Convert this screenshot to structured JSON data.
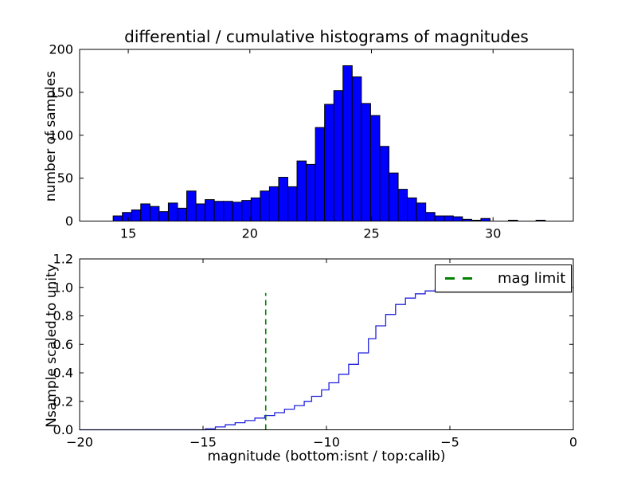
{
  "figure": {
    "background": "#ffffff",
    "frame_color": "#000000",
    "text_color": "#000000"
  },
  "chart_data": [
    {
      "id": "top-histogram",
      "type": "bar",
      "title": "differential / cumulative histograms of magnitudes",
      "xlabel": "",
      "ylabel": "number of samples",
      "bin_start": 14.38,
      "bin_width": 0.378,
      "counts": [
        6,
        10,
        13,
        20,
        17,
        11,
        21,
        15,
        35,
        20,
        25,
        23,
        23,
        22,
        24,
        27,
        35,
        40,
        51,
        40,
        70,
        66,
        109,
        136,
        152,
        181,
        168,
        137,
        123,
        87,
        56,
        37,
        27,
        21,
        10,
        6,
        6,
        5,
        2,
        1,
        3,
        0,
        0,
        1,
        0,
        0,
        1,
        0,
        0,
        0
      ],
      "xlim": [
        13.0,
        33.3
      ],
      "ylim": [
        0,
        200
      ],
      "xticks": [
        15,
        20,
        25,
        30
      ],
      "xticklabels": [
        "15",
        "20",
        "25",
        "30"
      ],
      "yticks": [
        0,
        50,
        100,
        150,
        200
      ],
      "yticklabels": [
        "0",
        "50",
        "100",
        "150",
        "200"
      ],
      "grid": false,
      "bar_color": "#0000ff",
      "bar_edge_color": "#000000"
    },
    {
      "id": "bottom-cumulative",
      "type": "line",
      "style": "step",
      "title": "",
      "xlabel": "magnitude (bottom:isnt / top:calib)",
      "ylabel": "Nsample scaled to unity",
      "points": [
        [
          -20,
          0
        ],
        [
          -15.2,
          0
        ],
        [
          -14.9,
          0.008
        ],
        [
          -14.5,
          0.02
        ],
        [
          -14.1,
          0.035
        ],
        [
          -13.7,
          0.05
        ],
        [
          -13.3,
          0.065
        ],
        [
          -12.9,
          0.082
        ],
        [
          -12.5,
          0.1
        ],
        [
          -12.1,
          0.12
        ],
        [
          -11.7,
          0.145
        ],
        [
          -11.3,
          0.17
        ],
        [
          -10.9,
          0.2
        ],
        [
          -10.6,
          0.235
        ],
        [
          -10.2,
          0.28
        ],
        [
          -9.9,
          0.33
        ],
        [
          -9.5,
          0.39
        ],
        [
          -9.1,
          0.46
        ],
        [
          -8.7,
          0.54
        ],
        [
          -8.3,
          0.64
        ],
        [
          -8.0,
          0.73
        ],
        [
          -7.6,
          0.81
        ],
        [
          -7.2,
          0.88
        ],
        [
          -6.8,
          0.925
        ],
        [
          -6.4,
          0.955
        ],
        [
          -6.0,
          0.975
        ],
        [
          -5.6,
          0.985
        ],
        [
          -5.2,
          0.992
        ],
        [
          -4.8,
          0.997
        ],
        [
          -4.4,
          1.0
        ],
        [
          0,
          1.0
        ]
      ],
      "xlim": [
        -20,
        0
      ],
      "ylim": [
        0,
        1.2
      ],
      "xticks": [
        -20,
        -15,
        -10,
        -5,
        0
      ],
      "xticklabels": [
        "−20",
        "−15",
        "−10",
        "−5",
        "0"
      ],
      "yticks": [
        0,
        0.2,
        0.4,
        0.6,
        0.8,
        1.0,
        1.2
      ],
      "yticklabels": [
        "0.0",
        "0.2",
        "0.4",
        "0.6",
        "0.8",
        "1.0",
        "1.2"
      ],
      "grid": false,
      "line_color": "#2222dd",
      "vline": {
        "x": -12.46,
        "y_bottom": 0,
        "y_top": 0.96,
        "color": "#008000",
        "style": "dashed",
        "label": "mag limit"
      },
      "legend": {
        "label": "mag limit",
        "position": "upper right",
        "sample_color": "#008000"
      }
    }
  ]
}
